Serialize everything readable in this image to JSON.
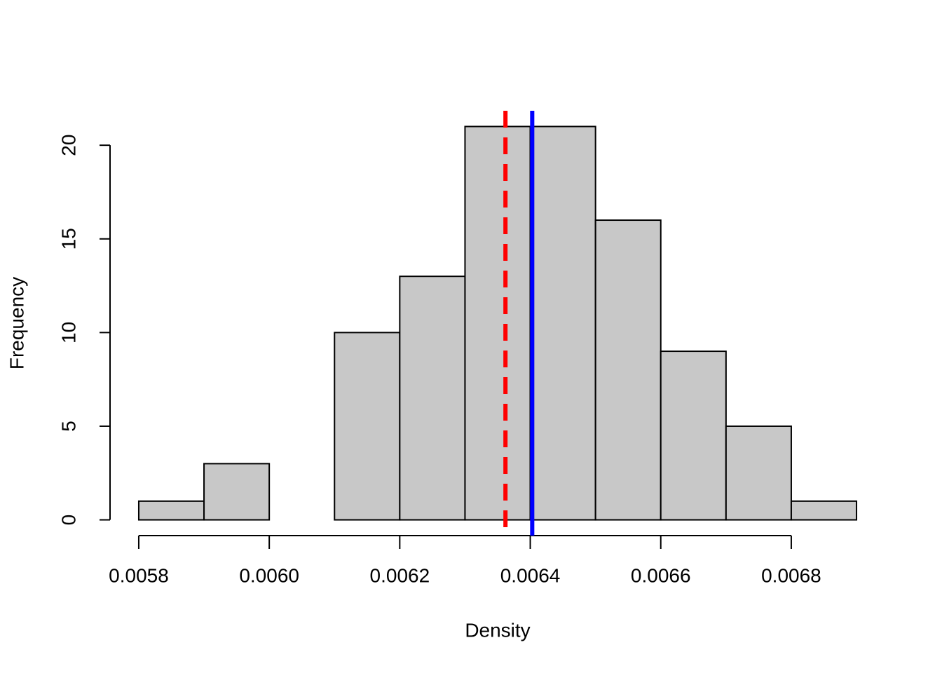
{
  "chart_data": {
    "type": "histogram",
    "xlabel": "Density",
    "ylabel": "Frequency",
    "bins": [
      0.0058,
      0.0059,
      0.006,
      0.0061,
      0.0062,
      0.0063,
      0.0064,
      0.0065,
      0.0066,
      0.0067,
      0.0068,
      0.0069
    ],
    "values": [
      1,
      3,
      0,
      10,
      13,
      21,
      21,
      16,
      9,
      5,
      1
    ],
    "color": "#c8c8c8",
    "xlim": [
      0.005756,
      0.006944
    ],
    "ylim": [
      -0.84,
      21.84
    ],
    "xticks": [
      0.0058,
      {
        "value": 0.006,
        "label": "0.0060"
      },
      0.0062,
      0.0064,
      0.0066,
      0.0068
    ],
    "yticks": [
      0,
      5,
      10,
      15,
      20
    ],
    "vlines": [
      {
        "value": 0.006362,
        "color": "#ff0000",
        "style": "dashed"
      },
      {
        "value": 0.006403,
        "color": "#0000ff",
        "style": "solid"
      }
    ]
  }
}
